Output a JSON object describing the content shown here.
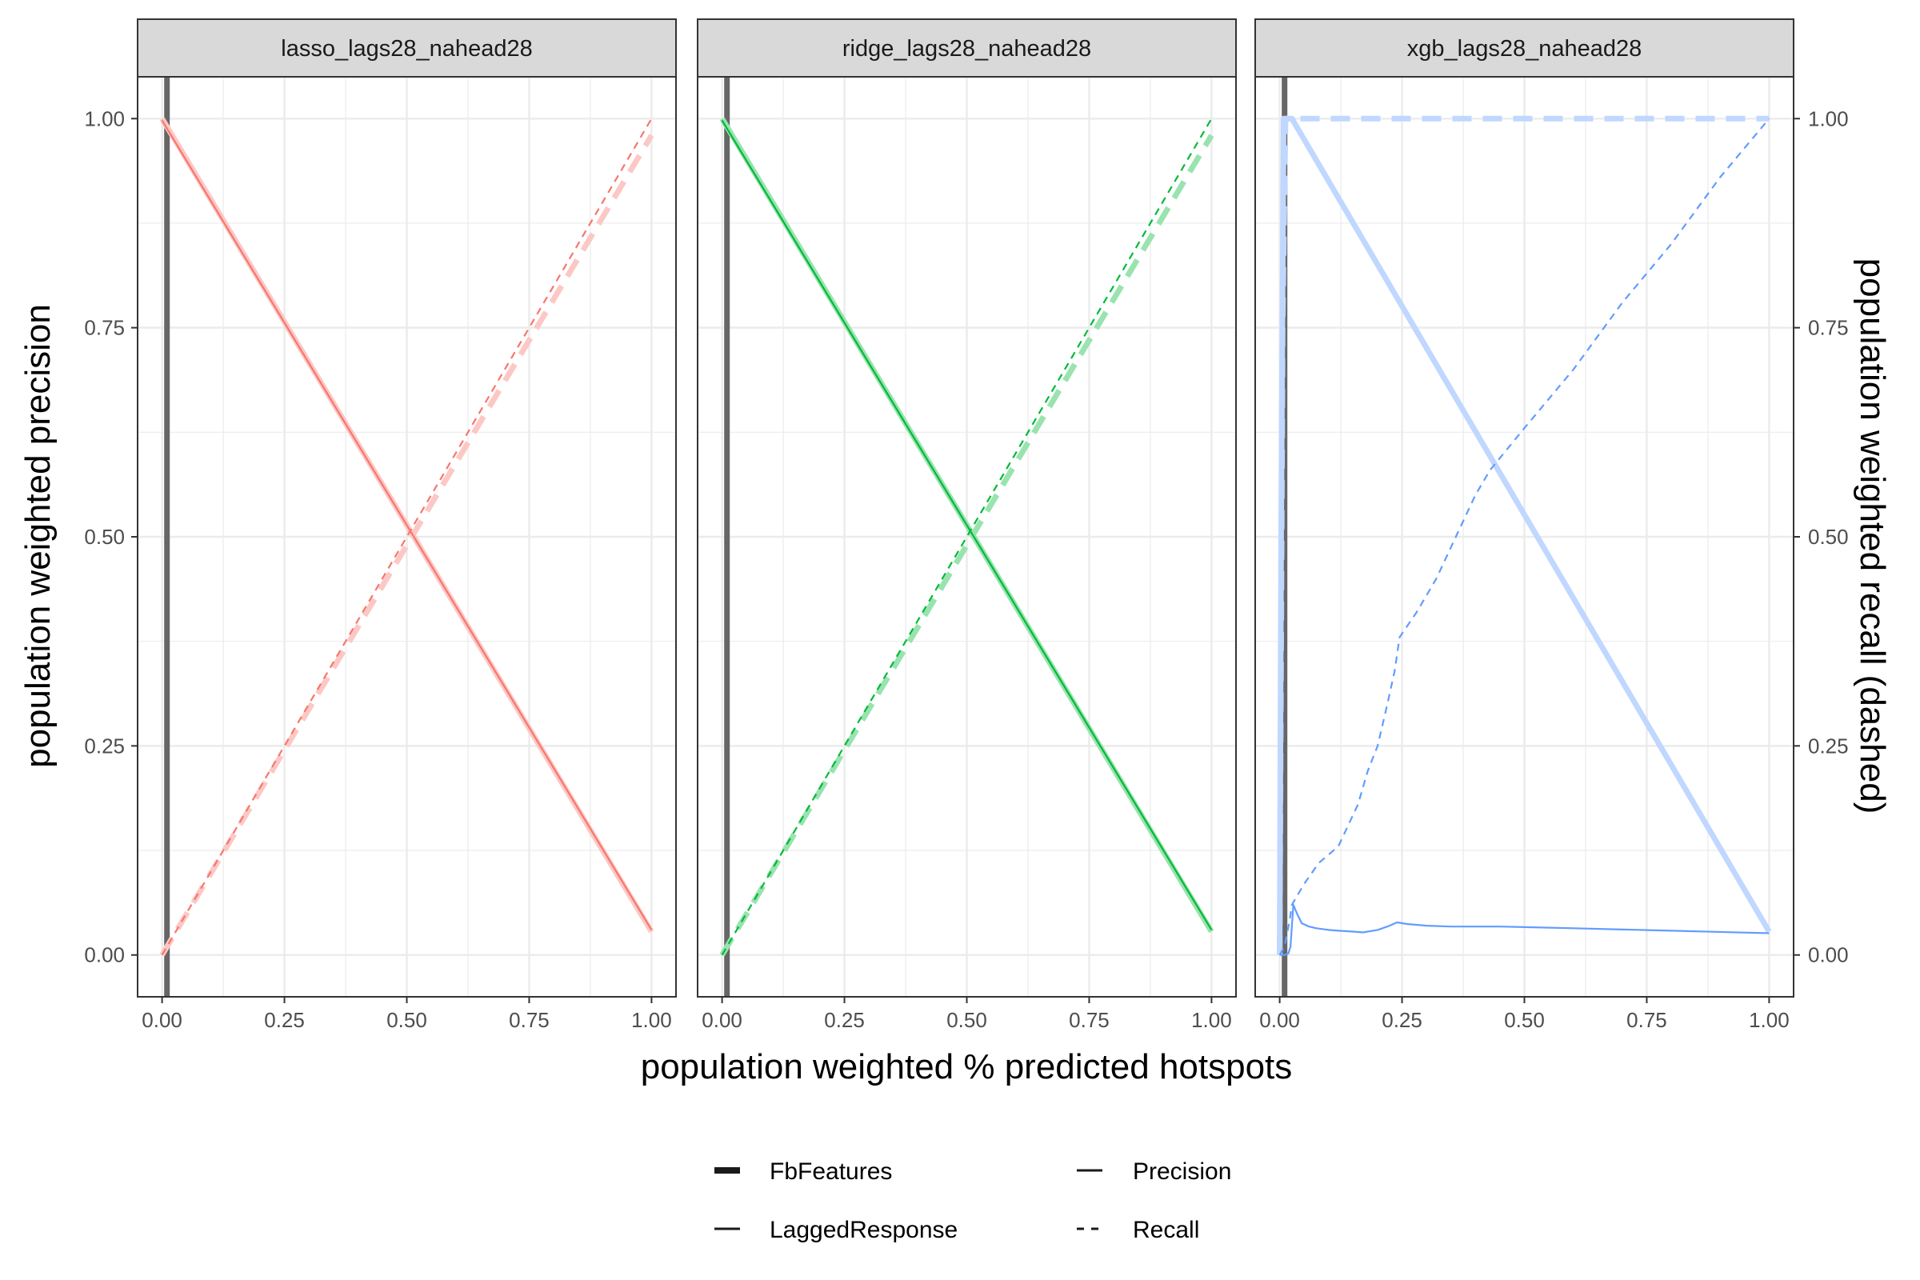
{
  "chart_data": {
    "type": "line",
    "xlabel": "population weighted % predicted hotspots",
    "ylabel": "population weighted precision",
    "ylabel_right": "population weighted recall (dashed)",
    "xlim": [
      -0.05,
      1.05
    ],
    "ylim": [
      -0.05,
      1.05
    ],
    "x_ticks": [
      "0.00",
      "0.25",
      "0.50",
      "0.75",
      "1.00"
    ],
    "y_ticks": [
      "0.00",
      "0.25",
      "0.50",
      "0.75",
      "1.00"
    ],
    "grid": true,
    "legend_position": "bottom",
    "legend": {
      "linewidth_entries": [
        {
          "label": "FbFeatures",
          "style": "thick"
        },
        {
          "label": "LaggedResponse",
          "style": "thin"
        }
      ],
      "linetype_entries": [
        {
          "label": "Precision",
          "style": "solid"
        },
        {
          "label": "Recall",
          "style": "dashed"
        }
      ]
    },
    "reference_line_x": 0.01,
    "panels": [
      {
        "title": "lasso_lags28_nahead28",
        "color": "#F8766D",
        "series": [
          {
            "type": "Precision",
            "model": "FbFeatures",
            "x": [
              0.0,
              1.0
            ],
            "y": [
              1.0,
              0.028
            ]
          },
          {
            "type": "Recall",
            "model": "FbFeatures",
            "x": [
              0.0,
              1.0
            ],
            "y": [
              0.0,
              0.98
            ]
          },
          {
            "type": "Precision",
            "model": "LaggedResponse",
            "x": [
              0.0,
              1.0
            ],
            "y": [
              0.998,
              0.03
            ]
          },
          {
            "type": "Recall",
            "model": "LaggedResponse",
            "x": [
              0.0,
              1.0
            ],
            "y": [
              0.0,
              1.0
            ]
          }
        ]
      },
      {
        "title": "ridge_lags28_nahead28",
        "color": "#00BA38",
        "series": [
          {
            "type": "Precision",
            "model": "FbFeatures",
            "x": [
              0.0,
              1.0
            ],
            "y": [
              1.0,
              0.028
            ]
          },
          {
            "type": "Recall",
            "model": "FbFeatures",
            "x": [
              0.0,
              1.0
            ],
            "y": [
              0.0,
              0.98
            ]
          },
          {
            "type": "Precision",
            "model": "LaggedResponse",
            "x": [
              0.0,
              1.0
            ],
            "y": [
              0.998,
              0.03
            ]
          },
          {
            "type": "Recall",
            "model": "LaggedResponse",
            "x": [
              0.0,
              1.0
            ],
            "y": [
              0.0,
              1.0
            ]
          }
        ]
      },
      {
        "title": "xgb_lags28_nahead28",
        "color": "#619CFF",
        "series": [
          {
            "type": "Precision",
            "model": "FbFeatures",
            "x": [
              0.0,
              0.003,
              0.008,
              0.025,
              1.0
            ],
            "y": [
              0.0,
              0.5,
              1.0,
              1.0,
              0.028
            ]
          },
          {
            "type": "Recall",
            "model": "FbFeatures",
            "x": [
              0.0,
              0.006,
              0.012,
              1.0
            ],
            "y": [
              0.0,
              0.75,
              1.0,
              1.0
            ]
          },
          {
            "type": "Precision",
            "model": "LaggedResponse",
            "x": [
              0.0,
              0.01,
              0.018,
              0.022,
              0.028,
              0.035,
              0.045,
              0.06,
              0.075,
              0.1,
              0.12,
              0.15,
              0.17,
              0.2,
              0.22,
              0.24,
              0.26,
              0.3,
              0.35,
              0.45,
              0.6,
              0.8,
              1.0
            ],
            "y": [
              0.0,
              0.0,
              0.002,
              0.01,
              0.06,
              0.05,
              0.038,
              0.034,
              0.032,
              0.03,
              0.029,
              0.028,
              0.027,
              0.03,
              0.034,
              0.039,
              0.037,
              0.035,
              0.034,
              0.034,
              0.032,
              0.029,
              0.026
            ]
          },
          {
            "type": "Recall",
            "model": "LaggedResponse",
            "x": [
              0.0,
              0.01,
              0.02,
              0.025,
              0.03,
              0.05,
              0.08,
              0.1,
              0.12,
              0.14,
              0.16,
              0.18,
              0.2,
              0.22,
              0.235,
              0.245,
              0.28,
              0.32,
              0.36,
              0.4,
              0.43,
              0.5,
              0.6,
              0.7,
              0.8,
              0.9,
              1.0
            ],
            "y": [
              0.0,
              0.01,
              0.04,
              0.06,
              0.065,
              0.085,
              0.11,
              0.12,
              0.13,
              0.155,
              0.18,
              0.22,
              0.25,
              0.3,
              0.34,
              0.38,
              0.41,
              0.45,
              0.5,
              0.55,
              0.58,
              0.63,
              0.7,
              0.78,
              0.85,
              0.93,
              1.0
            ]
          }
        ]
      }
    ]
  }
}
